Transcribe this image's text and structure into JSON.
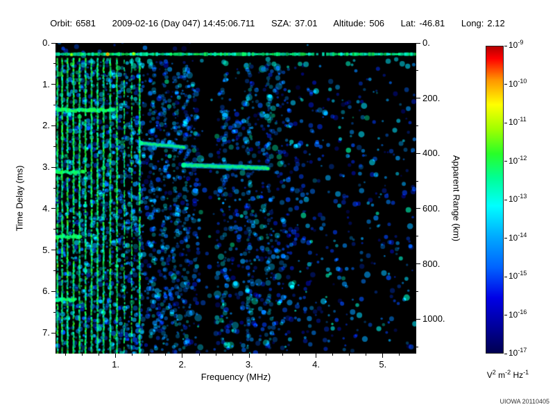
{
  "header": {
    "items": [
      {
        "label": "Orbit:",
        "value": "6581"
      },
      {
        "label": "",
        "value": "2009-02-16 (Day 047) 14:45:06.711"
      },
      {
        "label": "SZA:",
        "value": "37.01"
      },
      {
        "label": "Altitude:",
        "value": "506"
      },
      {
        "label": "Lat:",
        "value": "-46.81"
      },
      {
        "label": "Long:",
        "value": "2.12"
      }
    ]
  },
  "watermark": "UIOWA 20110405",
  "chart_data": {
    "type": "heatmap",
    "title": "",
    "xlabel": "Frequency (MHz)",
    "ylabel_left": "Time Delay (ms)",
    "ylabel_right": "Apparent Range (km)",
    "x_range_mhz": [
      0.1,
      5.5
    ],
    "y_range_ms": [
      0,
      7.5
    ],
    "y_right_range_km": [
      0,
      1125
    ],
    "x_ticks": [
      "1.",
      "2.",
      "3.",
      "4.",
      "5."
    ],
    "x_tick_values": [
      1,
      2,
      3,
      4,
      5
    ],
    "x_minor_step_mhz": 0.25,
    "y_ticks_left": [
      "0.",
      "1.",
      "2.",
      "3.",
      "4.",
      "5.",
      "6.",
      "7."
    ],
    "y_left_values": [
      0,
      1,
      2,
      3,
      4,
      5,
      6,
      7
    ],
    "y_minor_step_ms": 0.5,
    "y_ticks_right": [
      "0.",
      "200.",
      "400.",
      "600.",
      "800.",
      "1000."
    ],
    "y_right_values": [
      0,
      200,
      400,
      600,
      800,
      1000
    ],
    "y_right_minor_step_km": 100,
    "grid": false,
    "legend": "colorbar-right",
    "background_color": "#000000",
    "colorbar": {
      "scale": "log",
      "unit_parts": [
        {
          "base": "V",
          "exp": "2"
        },
        {
          "base": "m",
          "exp": "-2"
        },
        {
          "base": "Hz",
          "exp": "-1"
        }
      ],
      "exponents": [
        "-9",
        "-10",
        "-11",
        "-12",
        "-13",
        "-14",
        "-15",
        "-16",
        "-17"
      ],
      "gradient": [
        {
          "pos": 0,
          "color": "#b40000"
        },
        {
          "pos": 4,
          "color": "#ff0000"
        },
        {
          "pos": 11,
          "color": "#ff9600"
        },
        {
          "pos": 19,
          "color": "#ffff00"
        },
        {
          "pos": 27,
          "color": "#a0ff00"
        },
        {
          "pos": 35,
          "color": "#28ff28"
        },
        {
          "pos": 43,
          "color": "#00ff96"
        },
        {
          "pos": 52,
          "color": "#00ffff"
        },
        {
          "pos": 62,
          "color": "#00aaff"
        },
        {
          "pos": 72,
          "color": "#0064ff"
        },
        {
          "pos": 82,
          "color": "#0000e6"
        },
        {
          "pos": 92,
          "color": "#000096"
        },
        {
          "pos": 100,
          "color": "#000050"
        }
      ]
    },
    "features": {
      "description": "Radar-sounder ionogram: bright surface/direct band near 0.27 ms across all frequencies; electron plasma oscillation harmonic vertical green lines below ~1.4 MHz; horizontal electron cyclotron echo lines at left edge spaced ~1.55 ms; ionospheric echo trace near 2.4-3.0 ms between 1.4 and 3.3 MHz; diffuse blue speckle noise, quiet dark band near 2.3-2.5 MHz; sparse blobs above 4 MHz",
      "surface_band_ms": 0.27,
      "harmonic_lines_mhz": [
        0.13,
        0.2,
        0.28,
        0.37,
        0.46,
        0.55,
        0.64,
        0.73,
        0.82,
        0.92,
        1.02,
        1.13,
        1.24,
        1.36
      ],
      "cyclotron_echoes": [
        {
          "t_ms": 1.62,
          "f_end_mhz": 0.98
        },
        {
          "t_ms": 3.12,
          "f_end_mhz": 0.55
        },
        {
          "t_ms": 4.68,
          "f_end_mhz": 0.5
        },
        {
          "t_ms": 6.2,
          "f_end_mhz": 0.42
        }
      ],
      "trace_segments": [
        {
          "f0_mhz": 1.38,
          "t0_ms": 2.42,
          "f1_mhz": 2.02,
          "t1_ms": 2.52,
          "r": 2.0
        },
        {
          "f0_mhz": 2.02,
          "t0_ms": 2.95,
          "f1_mhz": 3.28,
          "t1_ms": 3.02,
          "r": 2.4
        }
      ],
      "hot_spots": [
        {
          "f_mhz": 0.88,
          "t_ms": 0.27,
          "v": 0.95
        },
        {
          "f_mhz": 1.27,
          "t_ms": 0.26,
          "v": 0.87
        },
        {
          "f_mhz": 0.34,
          "t_ms": 0.28,
          "v": 0.85
        }
      ],
      "diffuse_columns_mhz": [
        1.55,
        1.72,
        1.9,
        2.05,
        2.62,
        3.0,
        3.3
      ],
      "quiet_band_mhz": [
        2.28,
        2.5
      ]
    }
  }
}
